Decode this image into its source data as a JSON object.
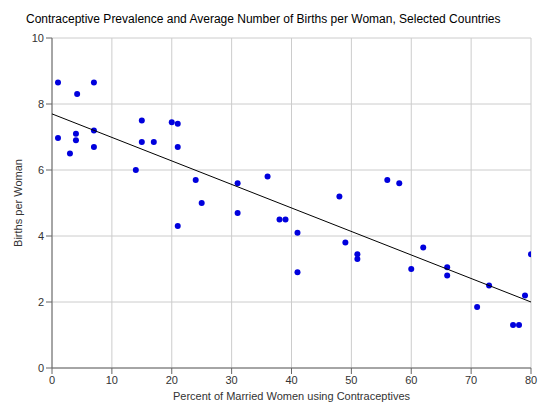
{
  "chart_data": {
    "type": "scatter",
    "title": "Contraceptive Prevalence and Average Number of Births per Woman, Selected Countries",
    "x_label": "Percent of Married Women using Contraceptives",
    "y_label": "Births per Woman",
    "xlim": [
      0,
      80
    ],
    "xticks": [
      0,
      10,
      20,
      30,
      40,
      50,
      60,
      70,
      80
    ],
    "ylim": [
      0,
      10
    ],
    "yticks": [
      0,
      2,
      4,
      6,
      8,
      10
    ],
    "grid": true,
    "series": [
      {
        "type": "scatter",
        "color": "#0000dd",
        "marker": "circle",
        "x": [
          1,
          1,
          4.2,
          4,
          4,
          3,
          7,
          7,
          7,
          14,
          15,
          15,
          17,
          20,
          21,
          21,
          21,
          24,
          25,
          31,
          31,
          36,
          38,
          39,
          41,
          41,
          48,
          49,
          51,
          51,
          56,
          58,
          60,
          62,
          66,
          66,
          73,
          71,
          77,
          78,
          79,
          80
        ],
        "values": [
          8.65,
          6.97,
          8.3,
          7.1,
          6.9,
          6.5,
          8.65,
          7.2,
          6.7,
          6.0,
          7.5,
          6.85,
          6.85,
          7.45,
          7.4,
          6.7,
          4.3,
          5.7,
          5.0,
          5.6,
          4.7,
          5.8,
          4.5,
          4.5,
          4.1,
          2.9,
          5.2,
          3.8,
          3.45,
          3.3,
          5.7,
          5.6,
          3.0,
          3.65,
          3.05,
          2.8,
          2.5,
          1.85,
          1.3,
          1.3,
          2.2,
          3.45
        ]
      },
      {
        "type": "line",
        "color": "#000000",
        "line_style": "solid",
        "x": [
          0,
          80
        ],
        "values": [
          7.7,
          2.0
        ]
      }
    ]
  }
}
